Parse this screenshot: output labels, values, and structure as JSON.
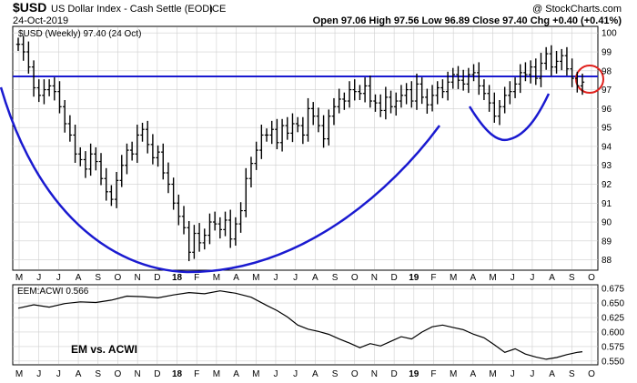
{
  "header": {
    "symbol": "$USD",
    "name": "US Dollar Index - Cash Settle (EOD)",
    "exchange": "ICE",
    "date": "24-Oct-2019",
    "ohlc": "Open 97.06  High 97.56  Low 96.89  Close 97.40  Chg +0.40 (+0.41%)",
    "copyright": "@ StockCharts.com"
  },
  "panel_label": "$USD (Weekly) 97.40 (24 Oct)",
  "lower_label": "EEM:ACWI 0.566",
  "lower_annotation": "EM vs. ACWI",
  "colors": {
    "bars": "#000000",
    "guide": "#1a1ad0",
    "circle": "#e0201c",
    "grid": "#cfcfcf"
  },
  "chart_data": [
    {
      "type": "ohlc",
      "series_name": "$USD (Weekly)",
      "y_ticks": [
        "100",
        "99",
        "98",
        "97",
        "96",
        "95",
        "94",
        "93",
        "92",
        "91",
        "90",
        "89",
        "88"
      ],
      "x_ticks": [
        "M",
        "J",
        "J",
        "A",
        "S",
        "O",
        "N",
        "D",
        "18",
        "F",
        "M",
        "A",
        "M",
        "J",
        "J",
        "A",
        "S",
        "O",
        "N",
        "D",
        "19",
        "F",
        "M",
        "A",
        "M",
        "J",
        "J",
        "A",
        "S",
        "O"
      ],
      "ylim": [
        87.5,
        100.3
      ],
      "resistance_level": 97.7,
      "points": [
        [
          0,
          99.4
        ],
        [
          1,
          99.0
        ],
        [
          2,
          98.2
        ],
        [
          3,
          97.1
        ],
        [
          4,
          96.7
        ],
        [
          5,
          97.0
        ],
        [
          6,
          97.2
        ],
        [
          7,
          96.9
        ],
        [
          8,
          96.1
        ],
        [
          9,
          95.2
        ],
        [
          10,
          94.6
        ],
        [
          11,
          93.6
        ],
        [
          12,
          93.3
        ],
        [
          13,
          92.8
        ],
        [
          14,
          93.6
        ],
        [
          15,
          93.2
        ],
        [
          16,
          92.3
        ],
        [
          17,
          91.6
        ],
        [
          18,
          91.2
        ],
        [
          19,
          92.2
        ],
        [
          20,
          93.0
        ],
        [
          21,
          93.8
        ],
        [
          22,
          93.6
        ],
        [
          23,
          94.6
        ],
        [
          24,
          94.9
        ],
        [
          25,
          94.1
        ],
        [
          26,
          93.4
        ],
        [
          27,
          93.7
        ],
        [
          28,
          92.6
        ],
        [
          29,
          92.0
        ],
        [
          30,
          91.0
        ],
        [
          31,
          90.3
        ],
        [
          32,
          89.7
        ],
        [
          33,
          88.4
        ],
        [
          34,
          89.4
        ],
        [
          35,
          88.9
        ],
        [
          36,
          89.3
        ],
        [
          37,
          90.0
        ],
        [
          38,
          89.9
        ],
        [
          39,
          89.6
        ],
        [
          40,
          90.1
        ],
        [
          41,
          89.1
        ],
        [
          42,
          89.9
        ],
        [
          43,
          90.6
        ],
        [
          44,
          92.3
        ],
        [
          45,
          93.1
        ],
        [
          46,
          93.8
        ],
        [
          47,
          94.6
        ],
        [
          48,
          94.6
        ],
        [
          49,
          94.9
        ],
        [
          50,
          94.2
        ],
        [
          51,
          95.1
        ],
        [
          52,
          94.7
        ],
        [
          53,
          95.2
        ],
        [
          54,
          95.1
        ],
        [
          55,
          94.6
        ],
        [
          56,
          96.0
        ],
        [
          57,
          95.6
        ],
        [
          58,
          95.1
        ],
        [
          59,
          94.4
        ],
        [
          60,
          95.6
        ],
        [
          61,
          96.1
        ],
        [
          62,
          96.5
        ],
        [
          63,
          96.4
        ],
        [
          64,
          97.0
        ],
        [
          65,
          96.9
        ],
        [
          66,
          96.8
        ],
        [
          67,
          97.2
        ],
        [
          68,
          96.4
        ],
        [
          69,
          96.3
        ],
        [
          70,
          95.9
        ],
        [
          71,
          96.6
        ],
        [
          72,
          96.1
        ],
        [
          73,
          96.4
        ],
        [
          74,
          96.7
        ],
        [
          75,
          97.0
        ],
        [
          76,
          96.4
        ],
        [
          77,
          97.3
        ],
        [
          78,
          96.6
        ],
        [
          79,
          96.2
        ],
        [
          80,
          96.7
        ],
        [
          81,
          97.1
        ],
        [
          82,
          96.9
        ],
        [
          83,
          97.4
        ],
        [
          84,
          97.8
        ],
        [
          85,
          97.5
        ],
        [
          86,
          97.3
        ],
        [
          87,
          97.8
        ],
        [
          88,
          97.9
        ],
        [
          89,
          97.2
        ],
        [
          90,
          96.8
        ],
        [
          91,
          96.3
        ],
        [
          92,
          95.6
        ],
        [
          93,
          96.1
        ],
        [
          94,
          96.7
        ],
        [
          95,
          96.9
        ],
        [
          96,
          97.3
        ],
        [
          97,
          97.9
        ],
        [
          98,
          97.8
        ],
        [
          99,
          98.2
        ],
        [
          100,
          97.6
        ],
        [
          101,
          98.4
        ],
        [
          102,
          98.9
        ],
        [
          103,
          98.2
        ],
        [
          104,
          98.5
        ],
        [
          105,
          98.8
        ],
        [
          106,
          98.1
        ],
        [
          107,
          97.6
        ],
        [
          108,
          97.2
        ],
        [
          109,
          97.4
        ]
      ]
    },
    {
      "type": "line",
      "series_name": "EEM:ACWI",
      "y_ticks": [
        "0.675",
        "0.650",
        "0.625",
        "0.600",
        "0.575",
        "0.550"
      ],
      "ylim": [
        0.545,
        0.68
      ],
      "points": [
        [
          0,
          0.641
        ],
        [
          3,
          0.647
        ],
        [
          6,
          0.643
        ],
        [
          9,
          0.649
        ],
        [
          12,
          0.652
        ],
        [
          15,
          0.651
        ],
        [
          18,
          0.655
        ],
        [
          21,
          0.662
        ],
        [
          24,
          0.661
        ],
        [
          27,
          0.659
        ],
        [
          30,
          0.664
        ],
        [
          33,
          0.668
        ],
        [
          36,
          0.666
        ],
        [
          39,
          0.671
        ],
        [
          42,
          0.667
        ],
        [
          45,
          0.66
        ],
        [
          48,
          0.646
        ],
        [
          50,
          0.637
        ],
        [
          52,
          0.626
        ],
        [
          54,
          0.612
        ],
        [
          56,
          0.605
        ],
        [
          58,
          0.601
        ],
        [
          60,
          0.596
        ],
        [
          62,
          0.588
        ],
        [
          64,
          0.581
        ],
        [
          66,
          0.573
        ],
        [
          68,
          0.58
        ],
        [
          70,
          0.576
        ],
        [
          72,
          0.584
        ],
        [
          74,
          0.592
        ],
        [
          76,
          0.588
        ],
        [
          78,
          0.6
        ],
        [
          80,
          0.609
        ],
        [
          82,
          0.612
        ],
        [
          84,
          0.608
        ],
        [
          86,
          0.604
        ],
        [
          88,
          0.596
        ],
        [
          90,
          0.59
        ],
        [
          92,
          0.578
        ],
        [
          94,
          0.565
        ],
        [
          96,
          0.571
        ],
        [
          98,
          0.562
        ],
        [
          100,
          0.557
        ],
        [
          102,
          0.553
        ],
        [
          104,
          0.556
        ],
        [
          106,
          0.561
        ],
        [
          108,
          0.565
        ],
        [
          109,
          0.566
        ]
      ]
    }
  ]
}
